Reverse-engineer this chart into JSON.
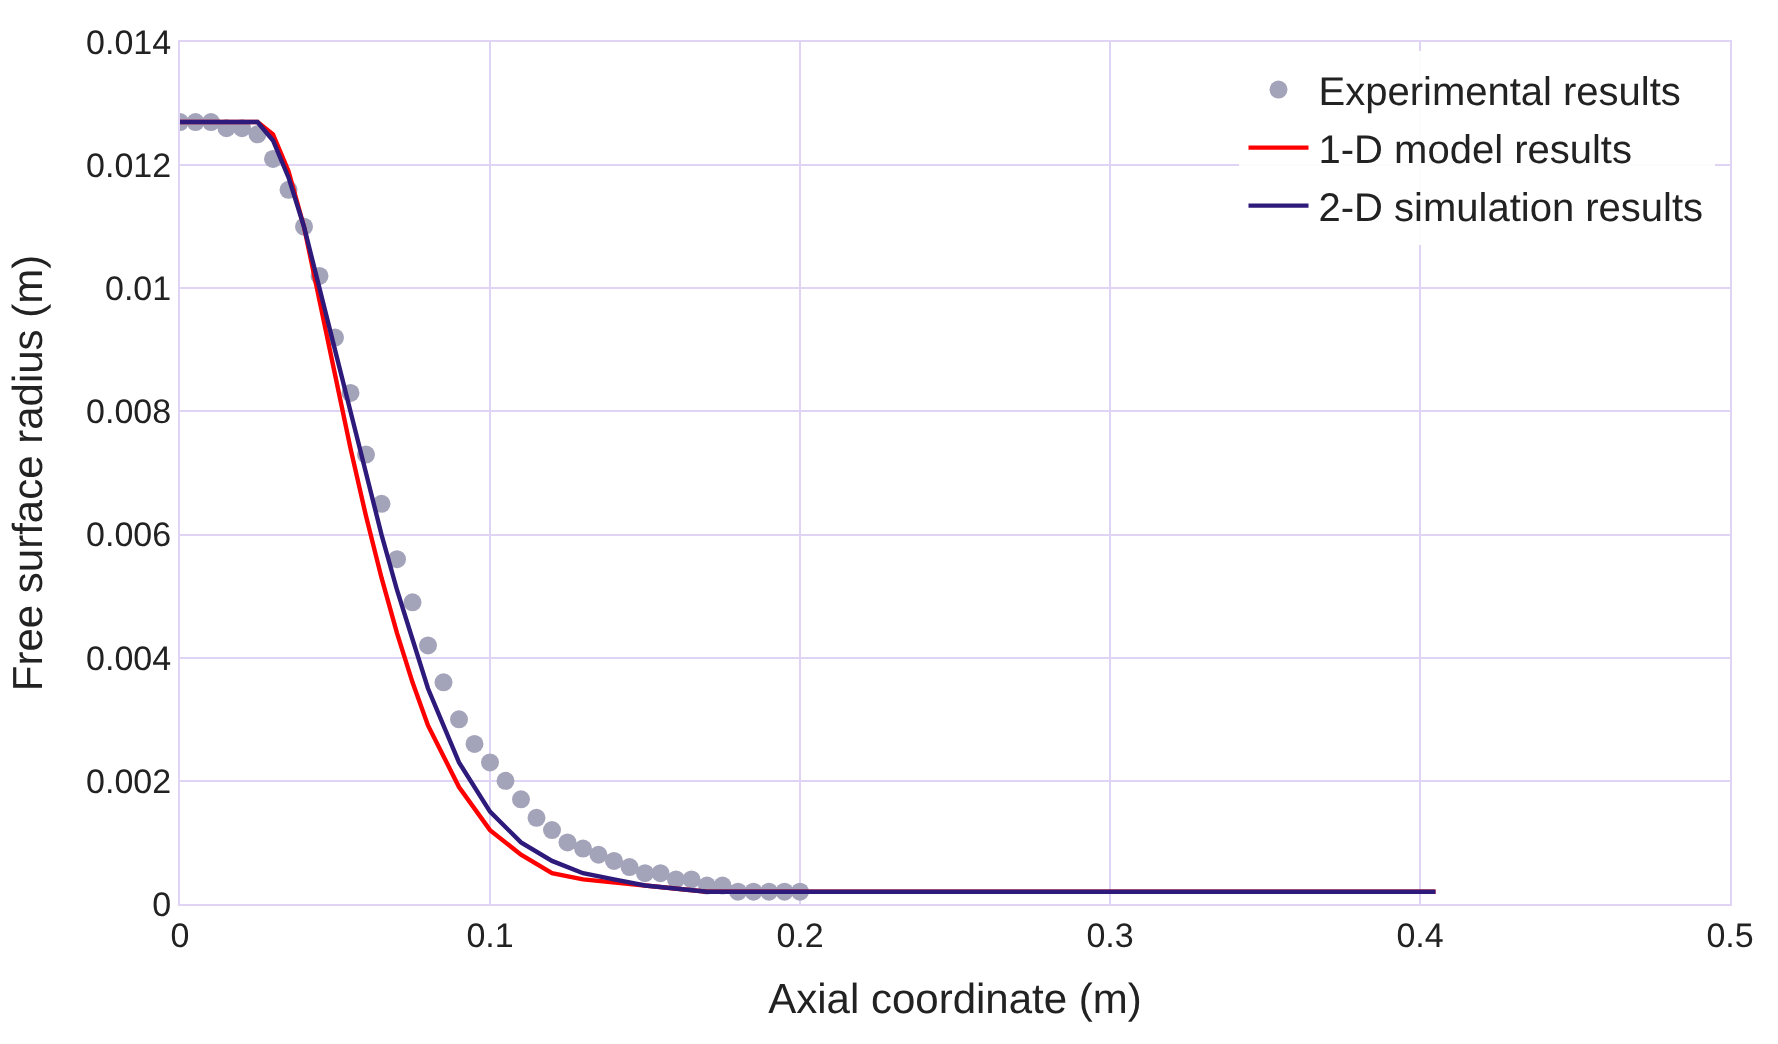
{
  "chart_data": {
    "type": "scatter",
    "xlabel": "Axial coordinate (m)",
    "ylabel": "Free surface radius (m)",
    "xlim": [
      0,
      0.5
    ],
    "xticks": [
      0,
      0.1,
      0.2,
      0.3,
      0.4,
      0.5
    ],
    "ylim": [
      0,
      0.014
    ],
    "yticks": [
      0,
      0.002,
      0.004,
      0.006,
      0.008,
      0.01,
      0.012,
      0.014
    ],
    "grid": true,
    "legend": "top right",
    "series": [
      {
        "name": "Experimental results",
        "marker": "circle",
        "color": "#a3a3ba",
        "x": [
          0,
          0.005,
          0.01,
          0.015,
          0.02,
          0.025,
          0.03,
          0.035,
          0.04,
          0.045,
          0.05,
          0.055,
          0.06,
          0.065,
          0.07,
          0.075,
          0.08,
          0.085,
          0.09,
          0.095,
          0.1,
          0.105,
          0.11,
          0.115,
          0.12,
          0.125,
          0.13,
          0.135,
          0.14,
          0.145,
          0.15,
          0.155,
          0.16,
          0.165,
          0.17,
          0.175,
          0.18,
          0.185,
          0.19,
          0.195,
          0.2
        ],
        "values": [
          0.0127,
          0.0127,
          0.0127,
          0.0126,
          0.0126,
          0.0125,
          0.0121,
          0.0116,
          0.011,
          0.0102,
          0.0092,
          0.0083,
          0.0073,
          0.0065,
          0.0056,
          0.0049,
          0.0042,
          0.0036,
          0.003,
          0.0026,
          0.0023,
          0.002,
          0.0017,
          0.0014,
          0.0012,
          0.001,
          0.0009,
          0.0008,
          0.0007,
          0.0006,
          0.0005,
          0.0005,
          0.0004,
          0.0004,
          0.0003,
          0.0003,
          0.0002,
          0.0002,
          0.0002,
          0.0002,
          0.0002
        ]
      },
      {
        "name": "1-D model results",
        "type": "line",
        "line_style": "solid",
        "color": "#ff0000",
        "x": [
          0,
          0.02,
          0.025,
          0.03,
          0.035,
          0.04,
          0.045,
          0.05,
          0.055,
          0.06,
          0.065,
          0.07,
          0.075,
          0.08,
          0.09,
          0.1,
          0.11,
          0.12,
          0.13,
          0.15,
          0.17,
          0.405
        ],
        "values": [
          0.0127,
          0.0127,
          0.0127,
          0.0125,
          0.0119,
          0.011,
          0.0098,
          0.0086,
          0.0074,
          0.0063,
          0.0053,
          0.0044,
          0.0036,
          0.0029,
          0.0019,
          0.0012,
          0.0008,
          0.0005,
          0.0004,
          0.0003,
          0.0002,
          0.0002
        ]
      },
      {
        "name": "2-D simulation results",
        "type": "line",
        "line_style": "solid",
        "color": "#2e1a7a",
        "x": [
          0,
          0.02,
          0.025,
          0.03,
          0.035,
          0.04,
          0.045,
          0.05,
          0.055,
          0.06,
          0.065,
          0.07,
          0.075,
          0.08,
          0.09,
          0.1,
          0.11,
          0.12,
          0.13,
          0.14,
          0.15,
          0.17,
          0.2,
          0.405
        ],
        "values": [
          0.0127,
          0.0127,
          0.0127,
          0.0124,
          0.0118,
          0.011,
          0.01,
          0.009,
          0.008,
          0.007,
          0.006,
          0.0051,
          0.0043,
          0.0035,
          0.0023,
          0.0015,
          0.001,
          0.0007,
          0.0005,
          0.0004,
          0.0003,
          0.0002,
          0.0002,
          0.0002
        ]
      }
    ]
  }
}
